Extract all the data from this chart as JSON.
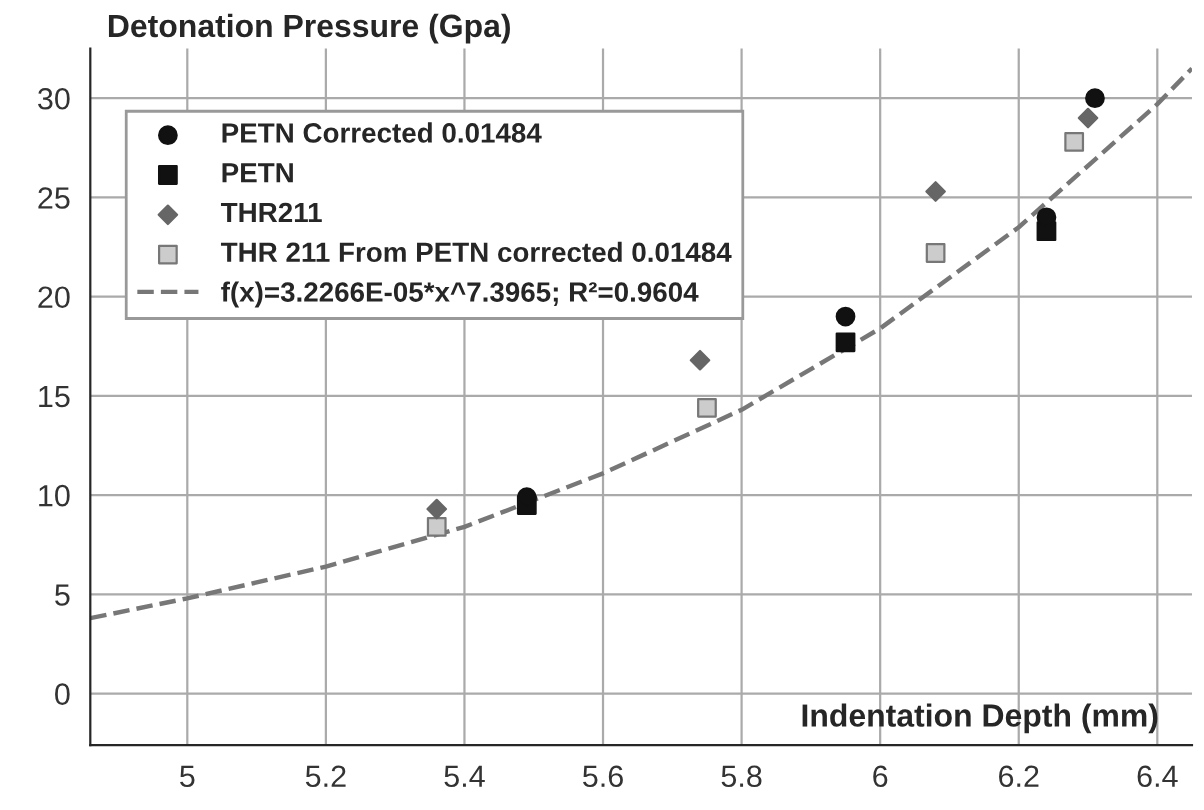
{
  "chart_data": {
    "type": "scatter",
    "xlabel": "Indentation Depth (mm)",
    "ylabel": "Detonation Pressure (Gpa)",
    "xlim": [
      4.86,
      6.45
    ],
    "ylim": [
      -2.6,
      32.5
    ],
    "xticks": [
      5,
      5.2,
      5.4,
      5.6,
      5.8,
      6,
      6.2,
      6.4
    ],
    "yticks": [
      0,
      5,
      10,
      15,
      20,
      25,
      30
    ],
    "grid": true,
    "legend": "top left",
    "series": [
      {
        "name": "PETN Corrected 0.01484",
        "color": "#111111",
        "marker": "circle",
        "x": [
          5.49,
          5.95,
          6.24,
          6.31
        ],
        "values": [
          9.9,
          19.0,
          24.0,
          30.0
        ]
      },
      {
        "name": "PETN",
        "color": "#111111",
        "marker": "square",
        "x": [
          5.49,
          5.95,
          6.24
        ],
        "values": [
          9.5,
          17.7,
          23.3
        ]
      },
      {
        "name": "THR211",
        "color": "#666666",
        "marker": "diamond",
        "x": [
          5.36,
          5.74,
          6.08,
          6.3
        ],
        "values": [
          9.3,
          16.8,
          25.3,
          29.0
        ]
      },
      {
        "name": "THR 211 From PETN corrected 0.01484",
        "color": "#cccccc",
        "marker": "square",
        "x": [
          5.36,
          5.75,
          6.08,
          6.28
        ],
        "values": [
          8.4,
          14.4,
          22.2,
          27.8
        ]
      },
      {
        "name": "f(x)=3.2266E-05*x^7.3965; R²=0.9604",
        "type": "line",
        "color": "#777777",
        "line_style": "dashed",
        "marker": "none",
        "x": [
          4.86,
          5.0,
          5.2,
          5.4,
          5.6,
          5.8,
          6.0,
          6.2,
          6.4,
          6.45
        ],
        "values": [
          3.8,
          4.8,
          6.4,
          8.4,
          11.1,
          14.3,
          18.4,
          23.5,
          29.7,
          31.5
        ]
      }
    ]
  }
}
